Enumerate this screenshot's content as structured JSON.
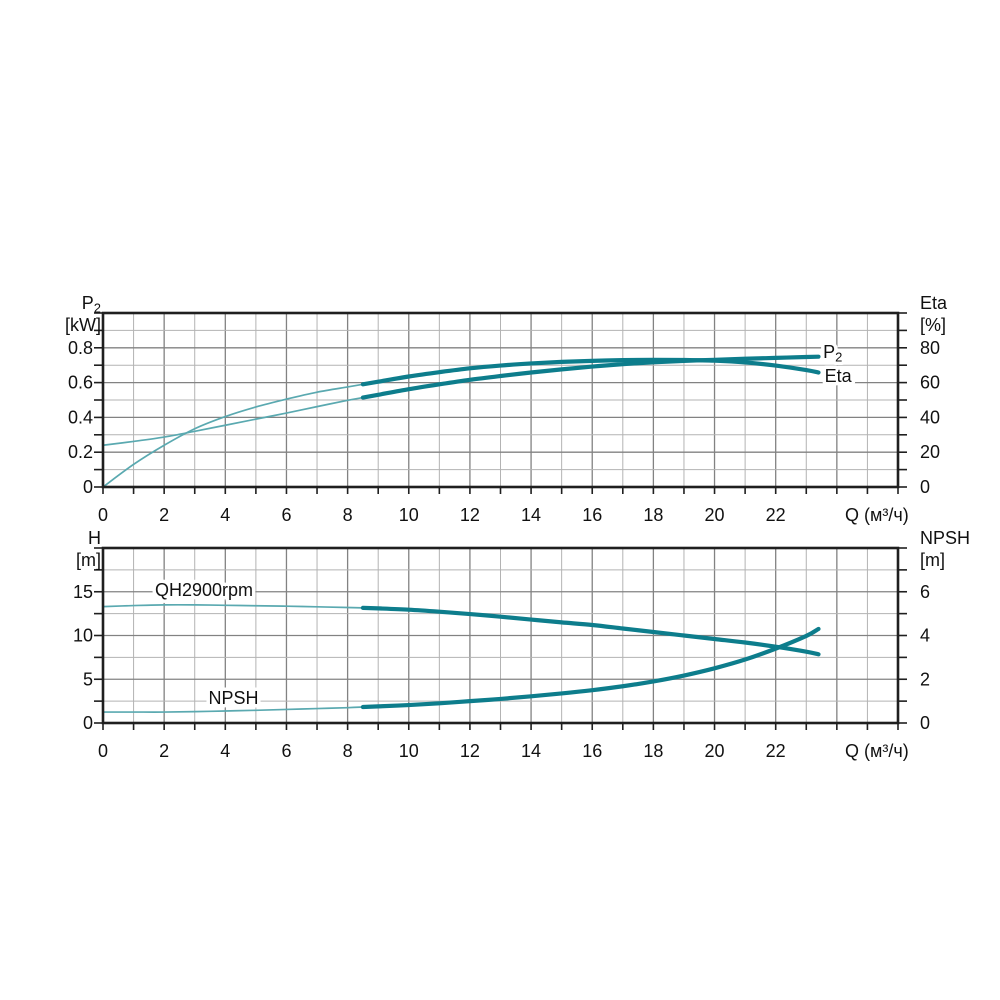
{
  "figure": {
    "background": "#ffffff",
    "description": "Pump performance curves: power/efficiency (top) and head/NPSH (bottom) versus flow"
  },
  "colors": {
    "curve_thick": "#0d7d8c",
    "curve_thin": "#5aa9b0",
    "grid_minor": "#b3b3b3",
    "grid_major": "#828282",
    "border": "#1f1f1f",
    "tick": "#1f1f1f",
    "text": "#111111",
    "label_halo": "#ffffff"
  },
  "chart_data": [
    {
      "type": "line",
      "id": "power-efficiency-chart",
      "grid": "on",
      "x_axis": {
        "title": "Q (м³/ч)",
        "min": 0,
        "max": 26,
        "minor_step": 1,
        "major_step": 2,
        "tick_labels": [
          {
            "t": "0",
            "v": 0
          },
          {
            "t": "2",
            "v": 2
          },
          {
            "t": "4",
            "v": 4
          },
          {
            "t": "6",
            "v": 6
          },
          {
            "t": "8",
            "v": 8
          },
          {
            "t": "10",
            "v": 10
          },
          {
            "t": "12",
            "v": 12
          },
          {
            "t": "14",
            "v": 14
          },
          {
            "t": "16",
            "v": 16
          },
          {
            "t": "18",
            "v": 18
          },
          {
            "t": "20",
            "v": 20
          },
          {
            "t": "22",
            "v": 22
          }
        ]
      },
      "left_axis": {
        "name": "P₂",
        "unit": "[kW]",
        "min": 0,
        "max": 1.0,
        "minor_step": 0.1,
        "major_step": 0.2,
        "tick_labels": [
          {
            "t": "0.8",
            "v": 0.8
          },
          {
            "t": "0.6",
            "v": 0.6
          },
          {
            "t": "0.4",
            "v": 0.4
          },
          {
            "t": "0.2",
            "v": 0.2
          },
          {
            "t": "0",
            "v": 0
          }
        ]
      },
      "right_axis": {
        "name": "Eta",
        "unit": "[%]",
        "min": 0,
        "max": 100,
        "minor_step": 10,
        "major_step": 20,
        "tick_labels": [
          {
            "t": "80",
            "v": 80
          },
          {
            "t": "60",
            "v": 60
          },
          {
            "t": "40",
            "v": 40
          },
          {
            "t": "20",
            "v": 20
          },
          {
            "t": "0",
            "v": 0
          }
        ]
      },
      "duty_range_start_q": 8.5,
      "series": [
        {
          "name": "P2",
          "axis": "left",
          "points": [
            [
              0,
              0.24
            ],
            [
              1,
              0.262
            ],
            [
              2,
              0.287
            ],
            [
              3,
              0.32
            ],
            [
              4,
              0.355
            ],
            [
              5,
              0.39
            ],
            [
              6,
              0.425
            ],
            [
              7,
              0.462
            ],
            [
              8,
              0.498
            ],
            [
              8.5,
              0.514
            ],
            [
              9,
              0.53
            ],
            [
              10,
              0.562
            ],
            [
              11,
              0.59
            ],
            [
              12,
              0.616
            ],
            [
              13,
              0.638
            ],
            [
              14,
              0.658
            ],
            [
              15,
              0.676
            ],
            [
              16,
              0.692
            ],
            [
              17,
              0.706
            ],
            [
              18,
              0.717
            ],
            [
              19,
              0.725
            ],
            [
              20,
              0.731
            ],
            [
              21,
              0.737
            ],
            [
              22,
              0.742
            ],
            [
              23,
              0.747
            ],
            [
              23.4,
              0.749
            ]
          ]
        },
        {
          "name": "Eta",
          "axis": "right",
          "points": [
            [
              0,
              0
            ],
            [
              1,
              13
            ],
            [
              2,
              24
            ],
            [
              3,
              33.5
            ],
            [
              4,
              40.5
            ],
            [
              5,
              46
            ],
            [
              6,
              50.5
            ],
            [
              7,
              54.5
            ],
            [
              8,
              57.5
            ],
            [
              8.5,
              59
            ],
            [
              9,
              60.5
            ],
            [
              10,
              63.5
            ],
            [
              11,
              66
            ],
            [
              12,
              68.2
            ],
            [
              13,
              69.8
            ],
            [
              14,
              71
            ],
            [
              15,
              71.9
            ],
            [
              16,
              72.5
            ],
            [
              17,
              72.9
            ],
            [
              18,
              73.1
            ],
            [
              19,
              73
            ],
            [
              20,
              72.6
            ],
            [
              21,
              71.6
            ],
            [
              22,
              69.8
            ],
            [
              23,
              67.2
            ],
            [
              23.4,
              65.8
            ]
          ]
        }
      ],
      "annotations": [
        {
          "text": "P₂",
          "q": 23.55,
          "v": 0.776
        },
        {
          "text": "Eta",
          "q": 23.6,
          "v": 0.638
        }
      ]
    },
    {
      "type": "line",
      "id": "head-npsh-chart",
      "grid": "on",
      "x_axis": {
        "title": "Q (м³/ч)",
        "min": 0,
        "max": 26,
        "minor_step": 1,
        "major_step": 2,
        "tick_labels": [
          {
            "t": "0",
            "v": 0
          },
          {
            "t": "2",
            "v": 2
          },
          {
            "t": "4",
            "v": 4
          },
          {
            "t": "6",
            "v": 6
          },
          {
            "t": "8",
            "v": 8
          },
          {
            "t": "10",
            "v": 10
          },
          {
            "t": "12",
            "v": 12
          },
          {
            "t": "14",
            "v": 14
          },
          {
            "t": "16",
            "v": 16
          },
          {
            "t": "18",
            "v": 18
          },
          {
            "t": "20",
            "v": 20
          },
          {
            "t": "22",
            "v": 22
          }
        ]
      },
      "left_axis": {
        "name": "H",
        "unit": "[m]",
        "min": 0,
        "max": 20,
        "minor_step": 2.5,
        "major_step": 5,
        "tick_labels": [
          {
            "t": "15",
            "v": 15
          },
          {
            "t": "10",
            "v": 10
          },
          {
            "t": "5",
            "v": 5
          },
          {
            "t": "0",
            "v": 0
          }
        ]
      },
      "right_axis": {
        "name": "NPSH",
        "unit": "[m]",
        "min": 0,
        "max": 8,
        "minor_step": 1,
        "major_step": 2,
        "tick_labels": [
          {
            "t": "6",
            "v": 6
          },
          {
            "t": "4",
            "v": 4
          },
          {
            "t": "2",
            "v": 2
          },
          {
            "t": "0",
            "v": 0
          }
        ]
      },
      "duty_range_start_q": 8.5,
      "series": [
        {
          "name": "QH2900rpm",
          "axis": "left",
          "points": [
            [
              0,
              13.3
            ],
            [
              1,
              13.42
            ],
            [
              2,
              13.5
            ],
            [
              3,
              13.5
            ],
            [
              4,
              13.45
            ],
            [
              5,
              13.4
            ],
            [
              6,
              13.35
            ],
            [
              7,
              13.28
            ],
            [
              8,
              13.2
            ],
            [
              8.5,
              13.16
            ],
            [
              9,
              13.1
            ],
            [
              10,
              12.95
            ],
            [
              11,
              12.72
            ],
            [
              12,
              12.45
            ],
            [
              13,
              12.15
            ],
            [
              14,
              11.82
            ],
            [
              15,
              11.5
            ],
            [
              16,
              11.2
            ],
            [
              17,
              10.8
            ],
            [
              18,
              10.4
            ],
            [
              19,
              10.0
            ],
            [
              20,
              9.6
            ],
            [
              21,
              9.2
            ],
            [
              22,
              8.72
            ],
            [
              23,
              8.15
            ],
            [
              23.4,
              7.85
            ]
          ]
        },
        {
          "name": "NPSH",
          "axis": "right",
          "points": [
            [
              0,
              0.5
            ],
            [
              1,
              0.5
            ],
            [
              2,
              0.5
            ],
            [
              3,
              0.52
            ],
            [
              4,
              0.55
            ],
            [
              5,
              0.58
            ],
            [
              6,
              0.62
            ],
            [
              7,
              0.66
            ],
            [
              8,
              0.7
            ],
            [
              8.5,
              0.73
            ],
            [
              9,
              0.76
            ],
            [
              10,
              0.82
            ],
            [
              11,
              0.9
            ],
            [
              12,
              1.0
            ],
            [
              13,
              1.1
            ],
            [
              14,
              1.22
            ],
            [
              15,
              1.35
            ],
            [
              16,
              1.5
            ],
            [
              17,
              1.68
            ],
            [
              18,
              1.9
            ],
            [
              19,
              2.17
            ],
            [
              20,
              2.5
            ],
            [
              21,
              2.9
            ],
            [
              22,
              3.4
            ],
            [
              23,
              3.98
            ],
            [
              23.4,
              4.3
            ]
          ]
        }
      ],
      "annotations": [
        {
          "text": "QH2900rpm",
          "q": 1.7,
          "v": 15.2
        },
        {
          "text": "NPSH",
          "q": 3.45,
          "v": 2.86
        }
      ]
    }
  ]
}
